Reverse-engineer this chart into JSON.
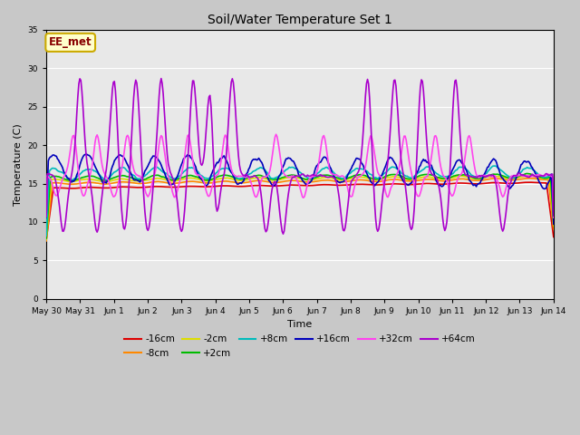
{
  "title": "Soil/Water Temperature Set 1",
  "xlabel": "Time",
  "ylabel": "Temperature (C)",
  "ylim": [
    0,
    35
  ],
  "xlim": [
    0,
    15
  ],
  "yticks": [
    0,
    5,
    10,
    15,
    20,
    25,
    30,
    35
  ],
  "xtick_labels": [
    "May 30",
    "May 31",
    "Jun 1",
    "Jun 2",
    "Jun 3",
    "Jun 4",
    "Jun 5",
    "Jun 6",
    "Jun 7",
    "Jun 8",
    "Jun 9",
    "Jun 10",
    "Jun 11",
    "Jun 12",
    "Jun 13",
    "Jun 14"
  ],
  "annotation_text": "EE_met",
  "annotation_bg": "#ffffcc",
  "annotation_border": "#ccaa00",
  "annotation_text_color": "#880000",
  "fig_facecolor": "#c8c8c8",
  "plot_facecolor": "#e8e8e8",
  "series": {
    "-16cm": {
      "color": "#dd0000",
      "lw": 1.2
    },
    "-8cm": {
      "color": "#ff8800",
      "lw": 1.2
    },
    "-2cm": {
      "color": "#dddd00",
      "lw": 1.2
    },
    "+2cm": {
      "color": "#00bb00",
      "lw": 1.2
    },
    "+8cm": {
      "color": "#00bbbb",
      "lw": 1.2
    },
    "+16cm": {
      "color": "#0000bb",
      "lw": 1.2
    },
    "+32cm": {
      "color": "#ff44ee",
      "lw": 1.2
    },
    "+64cm": {
      "color": "#aa00cc",
      "lw": 1.2
    }
  },
  "legend_rows": [
    [
      "-16cm",
      "-8cm",
      "-2cm",
      "+2cm",
      "+8cm",
      "+16cm"
    ],
    [
      "+32cm",
      "+64cm"
    ]
  ]
}
